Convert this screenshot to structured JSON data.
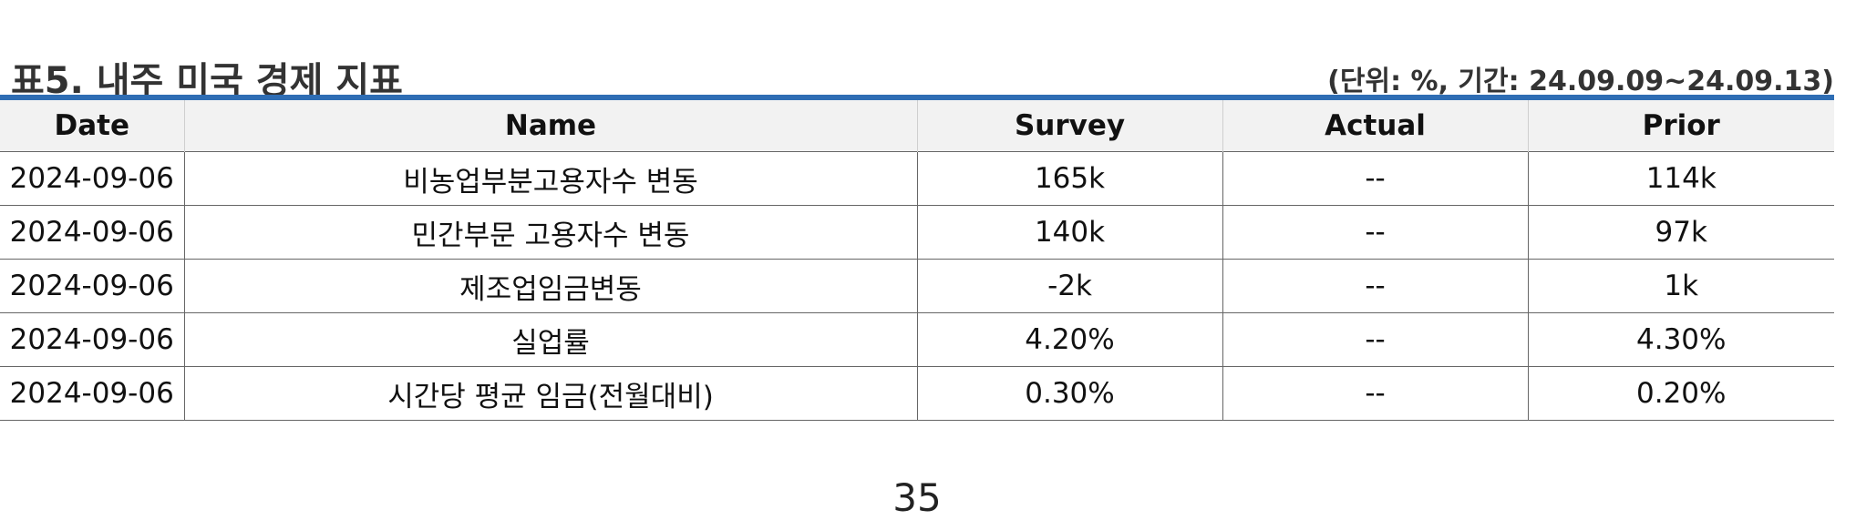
{
  "document": {
    "title": "표5. 내주 미국 경제 지표",
    "unit_note": "(단위: %, 기간: 24.09.09~24.09.13)",
    "accent_color": "#2E6DB4",
    "header_bg": "#F2F2F2",
    "table": {
      "columns": [
        "Date",
        "Name",
        "Survey",
        "Actual",
        "Prior"
      ],
      "rows": [
        [
          "2024-09-06",
          "비농업부분고용자수 변동",
          "165k",
          "--",
          "114k"
        ],
        [
          "2024-09-06",
          "민간부문 고용자수 변동",
          "140k",
          "--",
          "97k"
        ],
        [
          "2024-09-06",
          "제조업임금변동",
          "-2k",
          "--",
          "1k"
        ],
        [
          "2024-09-06",
          "실업률",
          "4.20%",
          "--",
          "4.30%"
        ],
        [
          "2024-09-06",
          "시간당 평균 임금(전월대비)",
          "0.30%",
          "--",
          "0.20%"
        ]
      ]
    },
    "page_number": "35"
  }
}
